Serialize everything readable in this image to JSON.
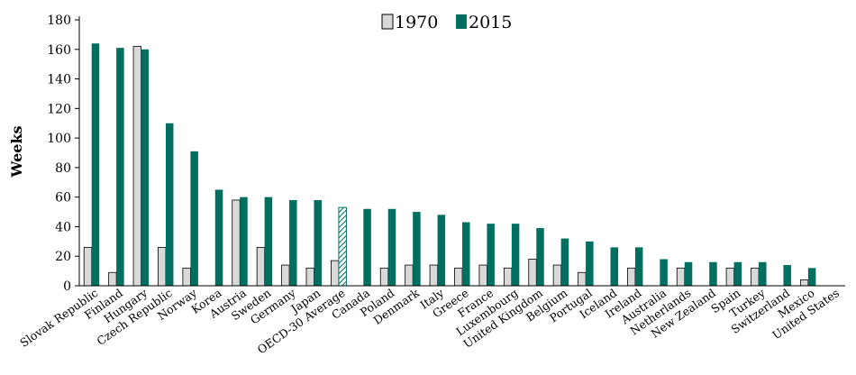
{
  "chart_data": {
    "type": "bar",
    "ylabel": "Weeks",
    "xlabel": "",
    "ylim": [
      0,
      180
    ],
    "yticks": [
      0,
      20,
      40,
      60,
      80,
      100,
      120,
      140,
      160,
      180
    ],
    "legend_position": "top-center",
    "grid": false,
    "categories": [
      "Slovak Republic",
      "Finland",
      "Hungary",
      "Czech Republic",
      "Norway",
      "Korea",
      "Austria",
      "Sweden",
      "Germany",
      "Japan",
      "OECD-30 Average",
      "Canada",
      "Poland",
      "Denmark",
      "Italy",
      "Greece",
      "France",
      "Luxembourg",
      "United Kingdom",
      "Belgium",
      "Portugal",
      "Iceland",
      "Ireland",
      "Australia",
      "Netherlands",
      "New Zealand",
      "Spain",
      "Turkey",
      "Switzerland",
      "Mexico",
      "United States"
    ],
    "highlight_category": "OECD-30 Average",
    "series": [
      {
        "name": "1970",
        "color": "#d9d9d9",
        "values": [
          26,
          9,
          162,
          26,
          12,
          0,
          58,
          26,
          14,
          12,
          17,
          0,
          12,
          14,
          14,
          12,
          14,
          12,
          18,
          14,
          9,
          0,
          12,
          0,
          12,
          0,
          12,
          12,
          0,
          4,
          0
        ]
      },
      {
        "name": "2015",
        "color": "#006f5f",
        "values": [
          164,
          161,
          160,
          110,
          91,
          65,
          60,
          60,
          58,
          58,
          53,
          52,
          52,
          50,
          48,
          43,
          42,
          42,
          39,
          32,
          30,
          26,
          26,
          18,
          16,
          16,
          16,
          16,
          14,
          12,
          0
        ]
      }
    ]
  }
}
